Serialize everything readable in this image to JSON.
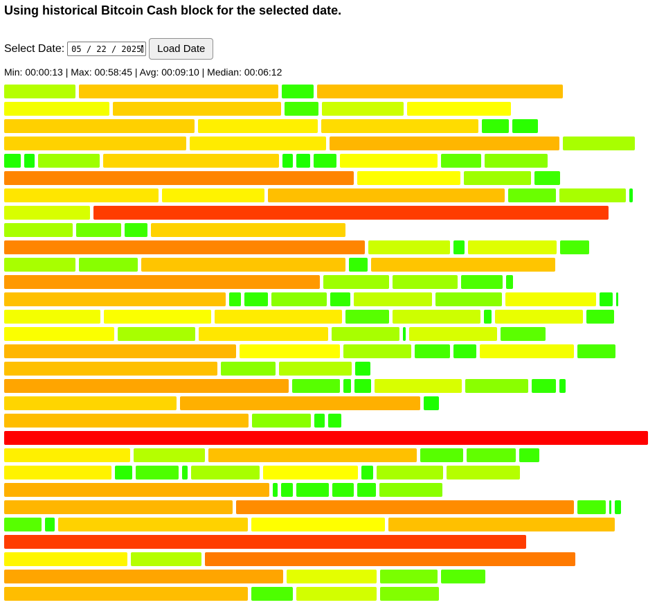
{
  "header": {
    "title": "Using historical Bitcoin Cash block for the selected date."
  },
  "controls": {
    "date_label": "Select Date:",
    "date_value": "05 / 22 / 2025",
    "load_button": "Load Date"
  },
  "stats": {
    "text": "Min: 00:00:13 | Max: 00:58:45 | Avg: 00:09:10 | Median: 00:06:12"
  },
  "blocks": {
    "color_scale": [
      "#1aff00",
      "#ffff00",
      "#ff0000"
    ],
    "rows": [
      [
        [
          "#b5ff00",
          103
        ],
        [
          "#ffc800",
          288
        ],
        [
          "#33ff00",
          46
        ],
        [
          "#ffbe00",
          355
        ]
      ],
      [
        [
          "#f4ff00",
          152
        ],
        [
          "#ffd000",
          243
        ],
        [
          "#45ff00",
          49
        ],
        [
          "#cdff00",
          118
        ],
        [
          "#ffff00",
          150
        ]
      ],
      [
        [
          "#ffd000",
          275
        ],
        [
          "#fff000",
          173
        ],
        [
          "#ffdc00",
          227
        ],
        [
          "#33ff00",
          39
        ],
        [
          "#2aff00",
          37
        ]
      ],
      [
        [
          "#ffd200",
          263
        ],
        [
          "#ffeb00",
          197
        ],
        [
          "#ffb600",
          332
        ],
        [
          "#a8ff00",
          104
        ]
      ],
      [
        [
          "#21ff00",
          24
        ],
        [
          "#1aff00",
          15
        ],
        [
          "#9eff00",
          89
        ],
        [
          "#ffd500",
          254
        ],
        [
          "#1dff00",
          15
        ],
        [
          "#1dff00",
          20
        ],
        [
          "#2aff00",
          33
        ],
        [
          "#fbff00",
          141
        ],
        [
          "#61ff00",
          58
        ],
        [
          "#8aff00",
          91
        ]
      ],
      [
        [
          "#ff8500",
          505
        ],
        [
          "#ffff00",
          149
        ],
        [
          "#9eff00",
          97
        ],
        [
          "#3cff00",
          37
        ]
      ],
      [
        [
          "#ffe600",
          223
        ],
        [
          "#fff300",
          148
        ],
        [
          "#ffbf00",
          342
        ],
        [
          "#6aff00",
          69
        ],
        [
          "#a8ff00",
          96
        ],
        [
          "#1aff00",
          5
        ]
      ],
      [
        [
          "#d8ff00",
          124
        ],
        [
          "#ff3c00",
          744
        ]
      ],
      [
        [
          "#a8ff00",
          99
        ],
        [
          "#70ff00",
          65
        ],
        [
          "#3cff00",
          33
        ],
        [
          "#ffd200",
          281
        ]
      ],
      [
        [
          "#ff8500",
          521
        ],
        [
          "#cdff00",
          118
        ],
        [
          "#2aff00",
          16
        ],
        [
          "#dfff00",
          128
        ],
        [
          "#49ff00",
          42
        ]
      ],
      [
        [
          "#a8ff00",
          103
        ],
        [
          "#88ff00",
          85
        ],
        [
          "#ffc500",
          295
        ],
        [
          "#33ff00",
          27
        ],
        [
          "#ffc500",
          266
        ]
      ],
      [
        [
          "#ff9900",
          456
        ],
        [
          "#9eff00",
          95
        ],
        [
          "#9eff00",
          94
        ],
        [
          "#4dff00",
          60
        ],
        [
          "#33ff00",
          10
        ]
      ],
      [
        [
          "#ffc000",
          320
        ],
        [
          "#33ff00",
          17
        ],
        [
          "#33ff00",
          34
        ],
        [
          "#8aff00",
          80
        ],
        [
          "#33ff00",
          29
        ],
        [
          "#c2ff00",
          113
        ],
        [
          "#8aff00",
          96
        ],
        [
          "#f4ff00",
          131
        ],
        [
          "#21ff00",
          19
        ],
        [
          "#1aff00",
          3
        ]
      ],
      [
        [
          "#f4ff00",
          139
        ],
        [
          "#fbff00",
          155
        ],
        [
          "#ffec00",
          184
        ],
        [
          "#57ff00",
          63
        ],
        [
          "#cdff00",
          127
        ],
        [
          "#2aff00",
          11
        ],
        [
          "#e9ff00",
          127
        ],
        [
          "#3cff00",
          40
        ]
      ],
      [
        [
          "#fbff00",
          159
        ],
        [
          "#a8ff00",
          112
        ],
        [
          "#ffe700",
          187
        ],
        [
          "#a8ff00",
          98
        ],
        [
          "#1aff00",
          4
        ],
        [
          "#d8ff00",
          127
        ],
        [
          "#5bff00",
          65
        ]
      ],
      [
        [
          "#ffb600",
          335
        ],
        [
          "#ffff00",
          145
        ],
        [
          "#a8ff00",
          98
        ],
        [
          "#45ff00",
          51
        ],
        [
          "#33ff00",
          33
        ],
        [
          "#f4ff00",
          136
        ],
        [
          "#49ff00",
          55
        ]
      ],
      [
        [
          "#ffc000",
          308
        ],
        [
          "#8aff00",
          79
        ],
        [
          "#b5ff00",
          105
        ],
        [
          "#21ff00",
          22
        ]
      ],
      [
        [
          "#ffa500",
          411
        ],
        [
          "#57ff00",
          69
        ],
        [
          "#2aff00",
          11
        ],
        [
          "#2aff00",
          24
        ],
        [
          "#d8ff00",
          126
        ],
        [
          "#8aff00",
          91
        ],
        [
          "#33ff00",
          35
        ],
        [
          "#21ff00",
          9
        ]
      ],
      [
        [
          "#ffd500",
          249
        ],
        [
          "#ffb000",
          347
        ],
        [
          "#1dff00",
          22
        ]
      ],
      [
        [
          "#ffbd00",
          353
        ],
        [
          "#8aff00",
          85
        ],
        [
          "#2aff00",
          15
        ],
        [
          "#2aff00",
          19
        ]
      ],
      [
        [
          "#ff0000",
          930
        ]
      ],
      [
        [
          "#fff000",
          182
        ],
        [
          "#b5ff00",
          103
        ],
        [
          "#ffc000",
          301
        ],
        [
          "#57ff00",
          62
        ],
        [
          "#61ff00",
          71
        ],
        [
          "#3cff00",
          29
        ]
      ],
      [
        [
          "#fff300",
          155
        ],
        [
          "#2aff00",
          25
        ],
        [
          "#4dff00",
          62
        ],
        [
          "#2aff00",
          8
        ],
        [
          "#a8ff00",
          99
        ],
        [
          "#ffff00",
          137
        ],
        [
          "#2aff00",
          17
        ],
        [
          "#a8ff00",
          96
        ],
        [
          "#b5ff00",
          106
        ]
      ],
      [
        [
          "#ffb000",
          383
        ],
        [
          "#21ff00",
          7
        ],
        [
          "#2aff00",
          17
        ],
        [
          "#33ff00",
          47
        ],
        [
          "#33ff00",
          31
        ],
        [
          "#33ff00",
          27
        ],
        [
          "#8aff00",
          91
        ]
      ],
      [
        [
          "#ffb600",
          330
        ],
        [
          "#ff8c00",
          488
        ],
        [
          "#49ff00",
          41
        ],
        [
          "#1aff00",
          3
        ],
        [
          "#1dff00",
          9
        ]
      ],
      [
        [
          "#57ff00",
          54
        ],
        [
          "#2aff00",
          14
        ],
        [
          "#ffd200",
          274
        ],
        [
          "#ffff00",
          193
        ],
        [
          "#ffc000",
          327
        ]
      ],
      [
        [
          "#ff3c00",
          754
        ]
      ],
      [
        [
          "#fff600",
          178
        ],
        [
          "#b5ff00",
          102
        ],
        [
          "#ff7a00",
          535
        ]
      ],
      [
        [
          "#ffa500",
          403
        ],
        [
          "#e4ff00",
          130
        ],
        [
          "#7aff00",
          83
        ],
        [
          "#57ff00",
          64
        ]
      ],
      [
        [
          "#ffbd00",
          352
        ],
        [
          "#4dff00",
          60
        ],
        [
          "#d2ff00",
          116
        ],
        [
          "#82ff00",
          85
        ]
      ]
    ]
  }
}
